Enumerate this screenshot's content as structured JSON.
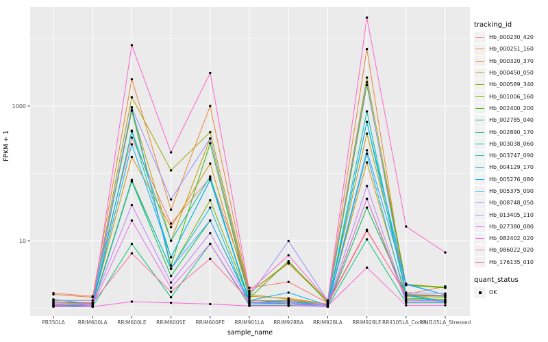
{
  "figure": {
    "panel_bg": "#EBEBEB",
    "grid_color": "#FFFFFF",
    "tick_color": "#333333",
    "tick_label_color": "#4D4D4D",
    "point_color": "#000000"
  },
  "axes": {
    "y_label": "FPKM + 1",
    "x_label": "sample_name",
    "y_ticks": [
      {
        "label": "1000",
        "value": 1000
      },
      {
        "label": "10",
        "value": 10
      }
    ],
    "y_minor_values": [
      10000,
      100,
      1
    ]
  },
  "legend": {
    "tracking_title": "tracking_id",
    "quant_title": "quant_status",
    "quant_label": "OK"
  },
  "chart_data": {
    "type": "line",
    "title": "",
    "xlabel": "sample_name",
    "ylabel": "FPKM + 1",
    "y_scale": "log10",
    "ylim": [
      0.76,
      29600
    ],
    "grid": true,
    "legend_position": "right",
    "categories": [
      "PB350LA",
      "RRIM600LA",
      "RRIM600LE",
      "RRIM600SE",
      "RRIM600PE",
      "RRIM901LA",
      "RRIM928BA",
      "RRIM928LA",
      "RRIM928LE",
      "RRII105LA_Control",
      "RRII105LA_Stressed"
    ],
    "series": [
      {
        "name": "Hb_000230_420",
        "color": "#F8766D",
        "values": [
          1.67,
          1.5,
          340,
          18,
          86,
          2.0,
          2.45,
          1.2,
          14.5,
          1.55,
          1.55
        ]
      },
      {
        "name": "Hb_000251_160",
        "color": "#EA8331",
        "values": [
          1.6,
          1.45,
          2500,
          29,
          1000,
          1.7,
          4.6,
          1.25,
          7000,
          1.6,
          2.1
        ]
      },
      {
        "name": "Hb_000320_370",
        "color": "#D89000",
        "values": [
          1.2,
          1.15,
          175,
          16,
          140,
          1.5,
          1.4,
          1.15,
          145,
          1.5,
          1.45
        ]
      },
      {
        "name": "Hb_000450_050",
        "color": "#C09B00",
        "values": [
          1.25,
          1.2,
          870,
          10,
          330,
          1.6,
          1.35,
          1.15,
          390,
          2.2,
          2.0
        ]
      },
      {
        "name": "Hb_000589_340",
        "color": "#A3A500",
        "values": [
          1.3,
          1.3,
          1350,
          111,
          410,
          1.7,
          4.8,
          1.3,
          2650,
          2.25,
          2.05
        ]
      },
      {
        "name": "Hb_001006_160",
        "color": "#7CAE00",
        "values": [
          1.15,
          1.1,
          80,
          3.8,
          40,
          1.3,
          1.25,
          1.1,
          42,
          1.4,
          1.35
        ]
      },
      {
        "name": "Hb_002400_200",
        "color": "#39B600",
        "values": [
          1.2,
          1.2,
          850,
          4.3,
          280,
          1.4,
          5.0,
          1.2,
          2050,
          2.2,
          2.0
        ]
      },
      {
        "name": "Hb_002785_040",
        "color": "#00BB4E",
        "values": [
          1.1,
          1.05,
          76,
          3.0,
          20,
          1.25,
          1.15,
          1.05,
          31,
          1.55,
          1.5
        ]
      },
      {
        "name": "Hb_002890_170",
        "color": "#00BF7D",
        "values": [
          1.05,
          1.05,
          9.0,
          1.45,
          9.0,
          1.1,
          1.1,
          1.05,
          10.5,
          1.2,
          1.2
        ]
      },
      {
        "name": "Hb_003038_060",
        "color": "#00C1A3",
        "values": [
          1.1,
          1.1,
          430,
          10,
          90,
          1.2,
          1.3,
          1.1,
          830,
          1.6,
          1.25
        ]
      },
      {
        "name": "Hb_003747_090",
        "color": "#00BFC4",
        "values": [
          1.08,
          1.1,
          420,
          5.7,
          80,
          1.2,
          1.25,
          1.1,
          580,
          1.55,
          1.22
        ]
      },
      {
        "name": "Hb_004129_170",
        "color": "#00BAE0",
        "values": [
          1.1,
          1.05,
          76,
          3.9,
          31,
          1.15,
          1.2,
          1.05,
          195,
          1.35,
          1.3
        ]
      },
      {
        "name": "Hb_005276_080",
        "color": "#00B0F6",
        "values": [
          1.15,
          1.1,
          270,
          5.7,
          81,
          1.3,
          1.7,
          1.1,
          580,
          2.3,
          1.57
        ]
      },
      {
        "name": "Hb_005375_090",
        "color": "#35A2FF",
        "values": [
          1.35,
          1.15,
          960,
          3.9,
          20,
          1.2,
          1.2,
          1.1,
          220,
          2.25,
          1.57
        ]
      },
      {
        "name": "Hb_008748_050",
        "color": "#9590FF",
        "values": [
          1.3,
          1.3,
          950,
          41,
          330,
          1.5,
          9.9,
          1.3,
          2250,
          1.7,
          1.65
        ]
      },
      {
        "name": "Hb_013405_110",
        "color": "#C77CFF",
        "values": [
          1.2,
          1.15,
          34,
          2.4,
          13,
          1.2,
          1.2,
          1.1,
          65,
          1.3,
          1.28
        ]
      },
      {
        "name": "Hb_027380_080",
        "color": "#E76BF3",
        "values": [
          1.15,
          1.1,
          20,
          2.0,
          9.0,
          1.15,
          1.15,
          1.05,
          42,
          1.25,
          1.24
        ]
      },
      {
        "name": "Hb_082402_020",
        "color": "#FA62DB",
        "values": [
          1.05,
          1.05,
          1.25,
          1.2,
          1.15,
          1.08,
          1.08,
          1.08,
          4.0,
          1.1,
          1.1
        ]
      },
      {
        "name": "Hb_086022_020",
        "color": "#FF61CC",
        "values": [
          1.1,
          1.15,
          8000,
          205,
          3100,
          1.8,
          6.1,
          1.3,
          20500,
          16.3,
          6.7
        ]
      },
      {
        "name": "Hb_176135_010",
        "color": "#FF6A98",
        "values": [
          1.1,
          1.2,
          6.5,
          1.75,
          5.4,
          1.3,
          1.3,
          1.15,
          14,
          1.6,
          1.55
        ]
      }
    ]
  }
}
